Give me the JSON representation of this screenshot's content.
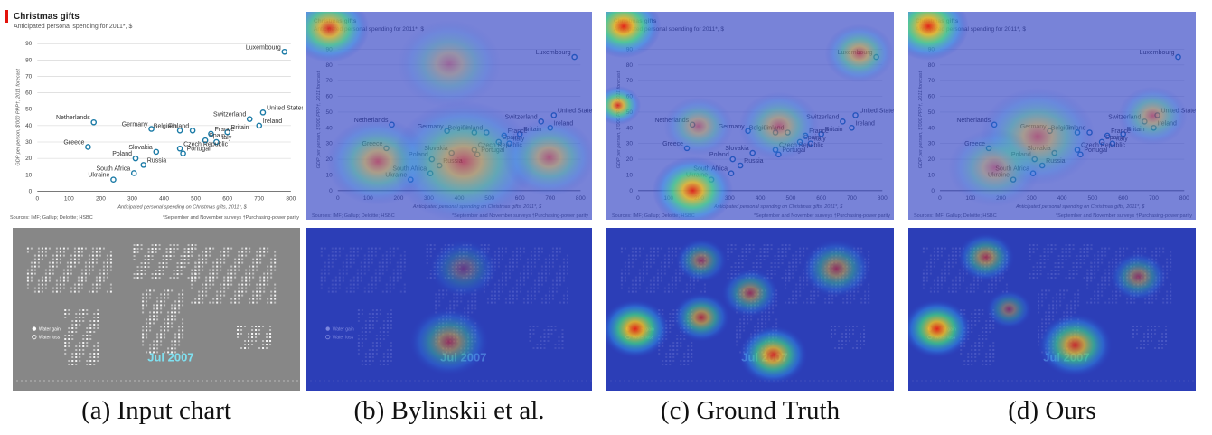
{
  "captions": {
    "a": "(a) Input chart",
    "b": "(b) Bylinskii et al.",
    "c": "(c) Ground Truth",
    "d": "(d) Ours"
  },
  "chart_data": {
    "type": "scatter",
    "title": "Christmas gifts",
    "subtitle": "Anticipated personal spending for 2011*, $",
    "xlabel": "Anticipated personal spending on Christmas gifts, 2011*, $",
    "ylabel": "GDP per person, $'000 PPP†, 2011 forecast",
    "xlim": [
      0,
      800
    ],
    "ylim": [
      0,
      90
    ],
    "xticks": [
      0,
      100,
      200,
      300,
      400,
      500,
      600,
      700,
      800
    ],
    "yticks": [
      0,
      10,
      20,
      30,
      40,
      50,
      60,
      70,
      80,
      90
    ],
    "grid": true,
    "points": [
      {
        "label": "Luxembourg",
        "x": 780,
        "y": 85
      },
      {
        "label": "United States",
        "x": 712,
        "y": 48
      },
      {
        "label": "Netherlands",
        "x": 178,
        "y": 42
      },
      {
        "label": "Switzerland",
        "x": 670,
        "y": 44
      },
      {
        "label": "Ireland",
        "x": 700,
        "y": 40
      },
      {
        "label": "Britain",
        "x": 600,
        "y": 36
      },
      {
        "label": "Finland",
        "x": 490,
        "y": 37
      },
      {
        "label": "France",
        "x": 548,
        "y": 35
      },
      {
        "label": "Germany",
        "x": 360,
        "y": 38
      },
      {
        "label": "Belgium",
        "x": 450,
        "y": 37
      },
      {
        "label": "Spain",
        "x": 530,
        "y": 31
      },
      {
        "label": "Italy",
        "x": 565,
        "y": 30
      },
      {
        "label": "Slovakia",
        "x": 375,
        "y": 24
      },
      {
        "label": "Portugal",
        "x": 460,
        "y": 23
      },
      {
        "label": "Greece",
        "x": 160,
        "y": 27
      },
      {
        "label": "Poland",
        "x": 310,
        "y": 20
      },
      {
        "label": "Russia",
        "x": 335,
        "y": 16
      },
      {
        "label": "Czech Republic",
        "x": 450,
        "y": 26
      },
      {
        "label": "South Africa",
        "x": 305,
        "y": 11
      },
      {
        "label": "Ukraine",
        "x": 240,
        "y": 7
      }
    ],
    "sources": "Sources: IMF; Gallup; Deloitte; HSBC",
    "notes": "*September and November surveys   †Purchasing-power parity"
  },
  "map": {
    "date_label": "Jul 2007",
    "legend": [
      "Water gain",
      "Water loss"
    ]
  },
  "colors": {
    "point": "#1a7aa6",
    "date_label": "#7fe0f0",
    "map_bg": "#878787",
    "heat_low": "#2b3ec9",
    "heat_high": "#e02010"
  }
}
